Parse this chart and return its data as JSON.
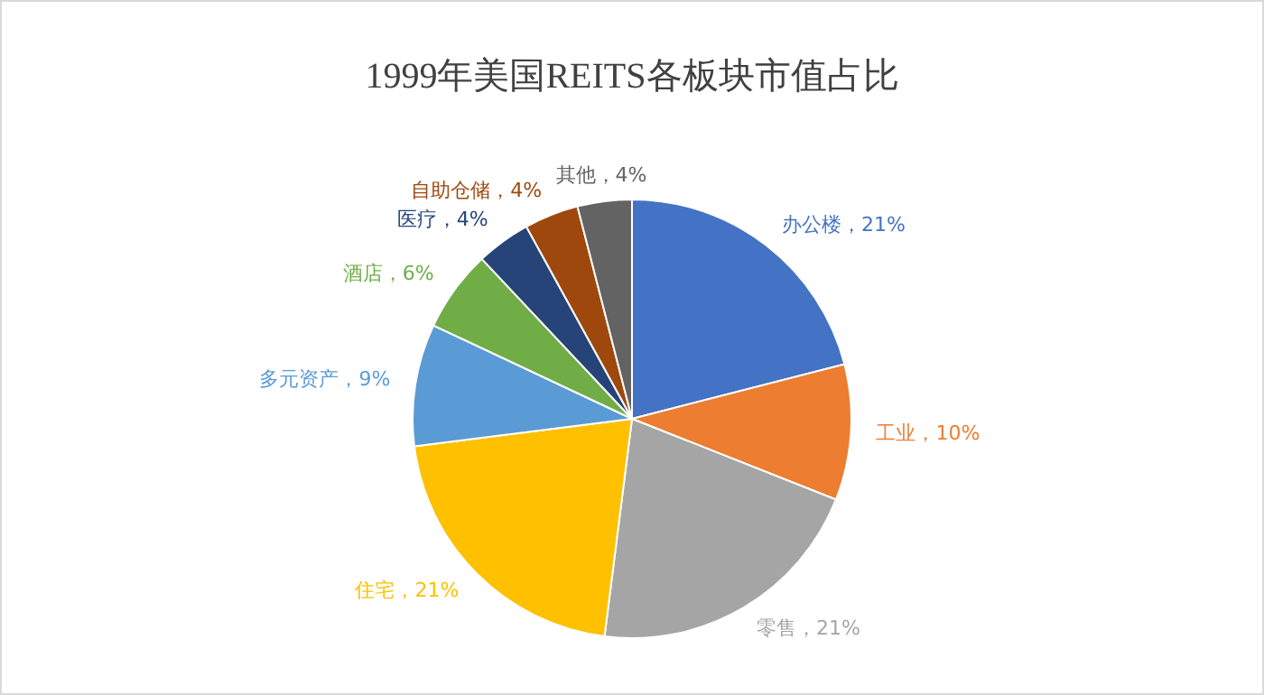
{
  "chart_data": {
    "type": "pie",
    "title": "1999年美国REITS各板块市值占比",
    "categories": [
      "办公楼",
      "工业",
      "零售",
      "住宅",
      "多元资产",
      "酒店",
      "医疗",
      "自助仓储",
      "其他"
    ],
    "values": [
      21,
      10,
      21,
      21,
      9,
      6,
      4,
      4,
      4
    ],
    "colors": [
      "#4472c4",
      "#ed7d31",
      "#a5a5a5",
      "#ffc000",
      "#5b9bd5",
      "#70ad47",
      "#264478",
      "#9e480e",
      "#636363"
    ],
    "value_labels": [
      "，21%",
      "，10%",
      "，21%",
      "，21%",
      "，9%",
      "，6%",
      "，4%",
      "，4%",
      "，4%"
    ],
    "legend": false
  }
}
